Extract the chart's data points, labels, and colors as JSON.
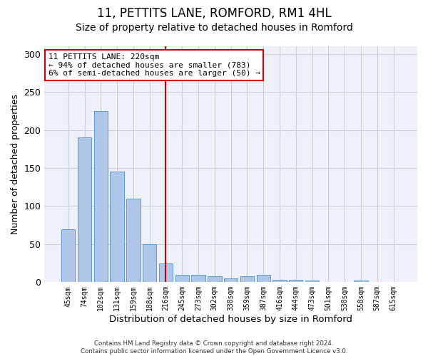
{
  "title1": "11, PETTITS LANE, ROMFORD, RM1 4HL",
  "title2": "Size of property relative to detached houses in Romford",
  "xlabel": "Distribution of detached houses by size in Romford",
  "ylabel": "Number of detached properties",
  "bar_labels": [
    "45sqm",
    "74sqm",
    "102sqm",
    "131sqm",
    "159sqm",
    "188sqm",
    "216sqm",
    "245sqm",
    "273sqm",
    "302sqm",
    "330sqm",
    "359sqm",
    "387sqm",
    "416sqm",
    "444sqm",
    "473sqm",
    "501sqm",
    "530sqm",
    "558sqm",
    "587sqm",
    "615sqm"
  ],
  "bar_values": [
    70,
    190,
    225,
    145,
    110,
    50,
    25,
    10,
    10,
    8,
    5,
    8,
    10,
    3,
    3,
    2,
    0,
    0,
    2,
    0,
    0
  ],
  "bar_color": "#aec6e8",
  "bar_edgecolor": "#5b9bd5",
  "bar_linewidth": 0.7,
  "grid_color": "#c8d0dc",
  "bg_color": "#eef2f8",
  "vline_x_index": 6,
  "vline_color": "#cc0000",
  "annotation_line1": "11 PETTITS LANE: 220sqm",
  "annotation_line2": "← 94% of detached houses are smaller (783)",
  "annotation_line3": "6% of semi-detached houses are larger (50) →",
  "annotation_box_color": "#ffffff",
  "annotation_box_edgecolor": "#cc0000",
  "footer_text": "Contains HM Land Registry data © Crown copyright and database right 2024.\nContains public sector information licensed under the Open Government Licence v3.0.",
  "ylim": [
    0,
    310
  ],
  "yticks": [
    0,
    50,
    100,
    150,
    200,
    250,
    300
  ],
  "title1_fontsize": 12,
  "title2_fontsize": 10,
  "xlabel_fontsize": 9.5,
  "ylabel_fontsize": 9
}
